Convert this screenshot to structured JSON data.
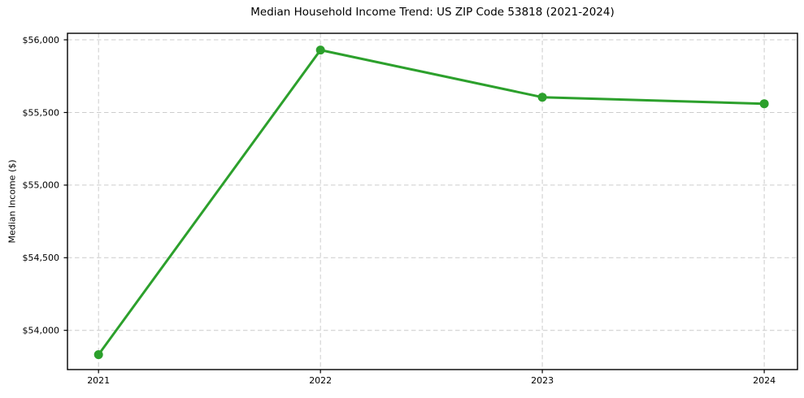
{
  "chart_data": {
    "type": "line",
    "title": "Median Household Income Trend: US ZIP Code 53818 (2021-2024)",
    "xlabel": "",
    "ylabel": "Median Income ($)",
    "x": [
      2021,
      2022,
      2023,
      2024
    ],
    "xtick_labels": [
      "2021",
      "2022",
      "2023",
      "2024"
    ],
    "series": [
      {
        "values": [
          53833,
          55930,
          55605,
          55560
        ],
        "color": "#2ca02c",
        "marker": "circle"
      }
    ],
    "yticks": [
      {
        "value": 54000,
        "label": "$54,000"
      },
      {
        "value": 54500,
        "label": "$54,500"
      },
      {
        "value": 55000,
        "label": "$55,000"
      },
      {
        "value": 55500,
        "label": "$55,500"
      },
      {
        "value": 56000,
        "label": "$56,000"
      }
    ],
    "xlim": [
      2020.86,
      2024.15
    ],
    "ylim": [
      53730,
      56045
    ],
    "grid": {
      "visible": true,
      "style": "dashed",
      "axes": "both",
      "color": "#cccccc"
    },
    "legend": "none",
    "background_color": "#ffffff",
    "text_color": "#000000"
  }
}
